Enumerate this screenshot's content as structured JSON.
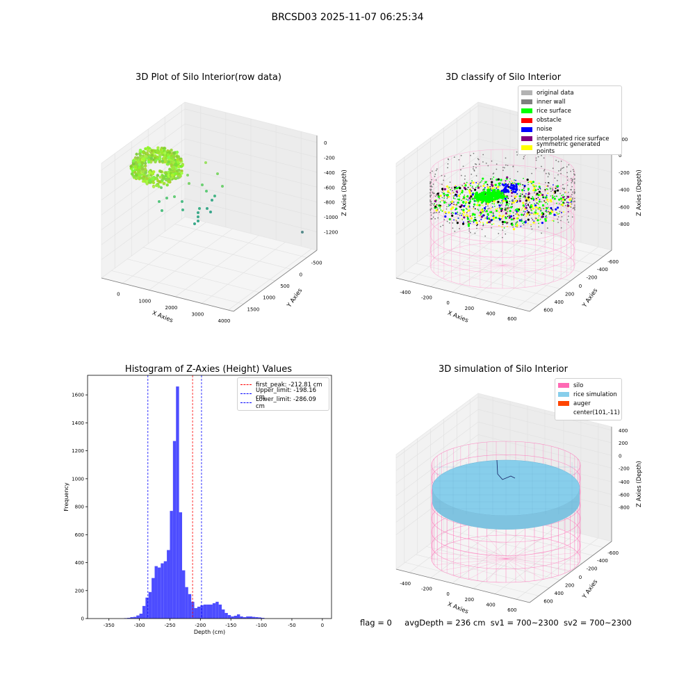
{
  "suptitle": "BRCSD03 2025-11-07 06:25:34",
  "panel1": {
    "title": "3D Plot of Silo Interior(row data)",
    "xlabel": "X Axies",
    "ylabel": "Y Axies",
    "zlabel": "Z Axies (Depth)",
    "xticks": [
      "0",
      "1000",
      "2000",
      "3000",
      "4000"
    ],
    "yticks": [
      "-500",
      "0",
      "500",
      "1000",
      "1500"
    ],
    "zticks": [
      "0",
      "-200",
      "-400",
      "-600",
      "-800",
      "-1000",
      "-1200"
    ]
  },
  "panel2": {
    "title": "3D classify of Silo Interior",
    "xlabel": "X Axies",
    "ylabel": "Y Axies",
    "zlabel": "Z Axies (Depth)",
    "xticks": [
      "-400",
      "-200",
      "0",
      "200",
      "400",
      "600"
    ],
    "yticks": [
      "-600",
      "-400",
      "-200",
      "0",
      "200",
      "400",
      "600"
    ],
    "zticks": [
      "200",
      "0",
      "-200",
      "-400",
      "-600",
      "-800"
    ],
    "legend": [
      {
        "label": "original data",
        "color": "#b3b3b3"
      },
      {
        "label": "inner wall",
        "color": "#808080"
      },
      {
        "label": "rice surface",
        "color": "#00ff00"
      },
      {
        "label": "obstacle",
        "color": "#ff0000"
      },
      {
        "label": "noise",
        "color": "#0000ff"
      },
      {
        "label": "interpolated rice surface",
        "color": "#800080"
      },
      {
        "label": "symmetric generated points",
        "color": "#ffff00"
      }
    ]
  },
  "panel4": {
    "title": "3D simulation of Silo Interior",
    "xlabel": "X Axies",
    "ylabel": "Y Axies",
    "zlabel": "Z Axies (Depth)",
    "xticks": [
      "-400",
      "-200",
      "0",
      "200",
      "400",
      "600"
    ],
    "yticks": [
      "-600",
      "-400",
      "-200",
      "0",
      "200",
      "400",
      "600"
    ],
    "zticks": [
      "400",
      "200",
      "0",
      "-200",
      "-400",
      "-600",
      "-800"
    ],
    "legend": [
      {
        "label": "silo",
        "color": "#ff69b4"
      },
      {
        "label": "rice simulation",
        "color": "#87ceeb"
      },
      {
        "label": "auger",
        "color": "#ff4500"
      },
      {
        "label": "center(101,-11)",
        "color": ""
      }
    ]
  },
  "footer": {
    "flag": "flag = 0",
    "avg": "avgDepth = 236 cm",
    "sv1": "sv1 = 700~2300",
    "sv2": "sv2 = 700~2300"
  },
  "chart_data": [
    {
      "type": "scatter",
      "title": "3D Plot of Silo Interior(row data)",
      "xlabel": "X Axies",
      "ylabel": "Y Axies",
      "zlabel": "Z Axies (Depth)",
      "xlim": [
        -500,
        4000
      ],
      "ylim": [
        -700,
        1700
      ],
      "zlim": [
        -1300,
        100
      ]
    },
    {
      "type": "scatter",
      "title": "3D classify of Silo Interior",
      "xlabel": "X Axies",
      "ylabel": "Y Axies",
      "zlabel": "Z Axies (Depth)",
      "series": [
        {
          "name": "original data"
        },
        {
          "name": "inner wall"
        },
        {
          "name": "rice surface"
        },
        {
          "name": "obstacle"
        },
        {
          "name": "noise"
        },
        {
          "name": "interpolated rice surface"
        },
        {
          "name": "symmetric generated points"
        }
      ]
    },
    {
      "type": "bar",
      "title": "Histogram of Z-Axies (Height) Values",
      "xlabel": "Depth (cm)",
      "ylabel": "Frequency",
      "xlim": [
        -385,
        15
      ],
      "ylim": [
        0,
        1740
      ],
      "xticks": [
        -350,
        -300,
        -250,
        -200,
        -150,
        -100,
        -50,
        0
      ],
      "yticks": [
        0,
        200,
        400,
        600,
        800,
        1000,
        1200,
        1400,
        1600
      ],
      "bin_width": 5,
      "bins": [
        [
          -325,
          3
        ],
        [
          -320,
          5
        ],
        [
          -315,
          10
        ],
        [
          -310,
          12
        ],
        [
          -305,
          22
        ],
        [
          -300,
          35
        ],
        [
          -295,
          90
        ],
        [
          -290,
          150
        ],
        [
          -285,
          190
        ],
        [
          -280,
          290
        ],
        [
          -275,
          375
        ],
        [
          -270,
          365
        ],
        [
          -265,
          395
        ],
        [
          -260,
          410
        ],
        [
          -255,
          490
        ],
        [
          -250,
          770
        ],
        [
          -245,
          1270
        ],
        [
          -240,
          1660
        ],
        [
          -235,
          760
        ],
        [
          -230,
          345
        ],
        [
          -225,
          225
        ],
        [
          -220,
          175
        ],
        [
          -215,
          120
        ],
        [
          -210,
          75
        ],
        [
          -205,
          85
        ],
        [
          -200,
          95
        ],
        [
          -195,
          100
        ],
        [
          -190,
          100
        ],
        [
          -185,
          100
        ],
        [
          -180,
          110
        ],
        [
          -175,
          120
        ],
        [
          -170,
          100
        ],
        [
          -165,
          65
        ],
        [
          -160,
          40
        ],
        [
          -155,
          25
        ],
        [
          -150,
          15
        ],
        [
          -145,
          20
        ],
        [
          -140,
          30
        ],
        [
          -135,
          15
        ],
        [
          -130,
          10
        ],
        [
          -125,
          15
        ],
        [
          -120,
          15
        ],
        [
          -115,
          12
        ],
        [
          -110,
          10
        ],
        [
          -105,
          8
        ],
        [
          -100,
          5
        ]
      ],
      "lines": [
        {
          "label": "first_peak: -212.81 cm",
          "x": -212.81,
          "color": "#ff0000"
        },
        {
          "label": "Upper_limit: -198.16 cm",
          "x": -198.16,
          "color": "#0000ff"
        },
        {
          "label": "Lower_limit: -286.09 cm",
          "x": -286.09,
          "color": "#0000ff"
        }
      ]
    },
    {
      "type": "surface",
      "title": "3D simulation of Silo Interior",
      "xlabel": "X Axies",
      "ylabel": "Y Axies",
      "zlabel": "Z Axies (Depth)",
      "series": [
        {
          "name": "silo"
        },
        {
          "name": "rice simulation"
        },
        {
          "name": "auger"
        },
        {
          "name": "center(101,-11)"
        }
      ]
    }
  ]
}
